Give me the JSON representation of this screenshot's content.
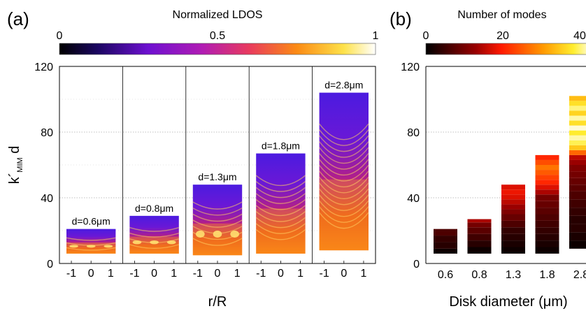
{
  "panel_a": {
    "letter": "(a)",
    "colorbar": {
      "title": "Normalized LDOS",
      "tick_labels": [
        "0",
        "0.5",
        "1"
      ],
      "ticks": [
        0,
        0.5,
        1
      ]
    },
    "y_ticks": [
      0,
      40,
      80,
      120
    ],
    "y_tick_labels": [
      "0",
      "40",
      "80",
      "120"
    ],
    "ylabel_main": "k´",
    "ylabel_sub": "MIM",
    "ylabel_tail": " d",
    "xlabel": "r/R",
    "subplot_x_tick_labels": [
      "-1",
      "0",
      "1"
    ],
    "subplots": [
      {
        "label": "d=0.6μm",
        "y_min": 6,
        "y_max": 21
      },
      {
        "label": "d=0.8μm",
        "y_min": 6,
        "y_max": 29
      },
      {
        "label": "d=1.3μm",
        "y_min": 5,
        "y_max": 48
      },
      {
        "label": "d=1.8μm",
        "y_min": 6,
        "y_max": 67
      },
      {
        "label": "d=2.8μm",
        "y_min": 8,
        "y_max": 104
      }
    ]
  },
  "panel_b": {
    "letter": "(b)",
    "colorbar": {
      "title": "Number of modes",
      "tick_labels": [
        "0",
        "20",
        "40"
      ],
      "ticks": [
        0,
        20,
        40
      ]
    },
    "y_tick_labels": [
      "0",
      "40",
      "80",
      "120"
    ],
    "xlabel": "Disk diameter (μm)"
  },
  "chart_data": [
    {
      "type": "heatmap",
      "title": "",
      "colorbar_label": "Normalized LDOS",
      "colorbar_range": [
        0,
        1
      ],
      "xlabel": "r/R",
      "ylabel": "k´MIM d",
      "ylim": [
        0,
        120
      ],
      "xlim": [
        -1,
        1
      ],
      "grid": "horizontal dotted",
      "panels": [
        {
          "d_um": 0.6,
          "label": "d=0.6μm",
          "y_range": [
            6,
            21
          ]
        },
        {
          "d_um": 0.8,
          "label": "d=0.8μm",
          "y_range": [
            6,
            29
          ]
        },
        {
          "d_um": 1.3,
          "label": "d=1.3μm",
          "y_range": [
            5,
            48
          ]
        },
        {
          "d_um": 1.8,
          "label": "d=1.8μm",
          "y_range": [
            6,
            67
          ]
        },
        {
          "d_um": 2.8,
          "label": "d=2.8μm",
          "y_range": [
            8,
            104
          ]
        }
      ]
    },
    {
      "type": "bar",
      "title": "",
      "colorbar_label": "Number of modes",
      "colorbar_range": [
        0,
        40
      ],
      "xlabel": "Disk diameter (μm)",
      "ylabel": "k´MIM d",
      "ylim": [
        0,
        120
      ],
      "categories": [
        "0.6",
        "0.8",
        "1.3",
        "1.8",
        "2.8"
      ],
      "bars": [
        {
          "category": "0.6",
          "bottom": 6,
          "top": 21,
          "segments": [
            {
              "y0": 6,
              "y1": 9,
              "modes": 1
            },
            {
              "y0": 9,
              "y1": 13,
              "modes": 3
            },
            {
              "y0": 13,
              "y1": 17,
              "modes": 4
            },
            {
              "y0": 17,
              "y1": 21,
              "modes": 6
            }
          ]
        },
        {
          "category": "0.8",
          "bottom": 6,
          "top": 27,
          "segments": [
            {
              "y0": 6,
              "y1": 10,
              "modes": 1
            },
            {
              "y0": 10,
              "y1": 14,
              "modes": 3
            },
            {
              "y0": 14,
              "y1": 18,
              "modes": 5
            },
            {
              "y0": 18,
              "y1": 22,
              "modes": 7
            },
            {
              "y0": 22,
              "y1": 25,
              "modes": 9
            },
            {
              "y0": 25,
              "y1": 27,
              "modes": 13
            }
          ]
        },
        {
          "category": "1.3",
          "bottom": 6,
          "top": 48,
          "segments": [
            {
              "y0": 6,
              "y1": 10,
              "modes": 1
            },
            {
              "y0": 10,
              "y1": 14,
              "modes": 2
            },
            {
              "y0": 14,
              "y1": 18,
              "modes": 3
            },
            {
              "y0": 18,
              "y1": 22,
              "modes": 4
            },
            {
              "y0": 22,
              "y1": 26,
              "modes": 6
            },
            {
              "y0": 26,
              "y1": 30,
              "modes": 8
            },
            {
              "y0": 30,
              "y1": 33,
              "modes": 10
            },
            {
              "y0": 33,
              "y1": 36,
              "modes": 12
            },
            {
              "y0": 36,
              "y1": 39,
              "modes": 14
            },
            {
              "y0": 39,
              "y1": 42,
              "modes": 16
            },
            {
              "y0": 42,
              "y1": 45,
              "modes": 17
            },
            {
              "y0": 45,
              "y1": 48,
              "modes": 16
            }
          ]
        },
        {
          "category": "1.8",
          "bottom": 6,
          "top": 66,
          "segments": [
            {
              "y0": 6,
              "y1": 10,
              "modes": 1
            },
            {
              "y0": 10,
              "y1": 14,
              "modes": 2
            },
            {
              "y0": 14,
              "y1": 18,
              "modes": 3
            },
            {
              "y0": 18,
              "y1": 22,
              "modes": 4
            },
            {
              "y0": 22,
              "y1": 26,
              "modes": 5
            },
            {
              "y0": 26,
              "y1": 30,
              "modes": 6
            },
            {
              "y0": 30,
              "y1": 34,
              "modes": 7
            },
            {
              "y0": 34,
              "y1": 38,
              "modes": 8
            },
            {
              "y0": 38,
              "y1": 42,
              "modes": 9
            },
            {
              "y0": 42,
              "y1": 45,
              "modes": 13
            },
            {
              "y0": 45,
              "y1": 48,
              "modes": 16
            },
            {
              "y0": 48,
              "y1": 51,
              "modes": 19
            },
            {
              "y0": 51,
              "y1": 54,
              "modes": 21
            },
            {
              "y0": 54,
              "y1": 57,
              "modes": 23
            },
            {
              "y0": 57,
              "y1": 60,
              "modes": 25
            },
            {
              "y0": 60,
              "y1": 63,
              "modes": 22
            },
            {
              "y0": 63,
              "y1": 66,
              "modes": 19
            }
          ]
        },
        {
          "category": "2.8",
          "bottom": 9,
          "top": 102,
          "segments": [
            {
              "y0": 9,
              "y1": 14,
              "modes": 1
            },
            {
              "y0": 14,
              "y1": 19,
              "modes": 2
            },
            {
              "y0": 19,
              "y1": 24,
              "modes": 3
            },
            {
              "y0": 24,
              "y1": 29,
              "modes": 3
            },
            {
              "y0": 29,
              "y1": 34,
              "modes": 4
            },
            {
              "y0": 34,
              "y1": 39,
              "modes": 5
            },
            {
              "y0": 39,
              "y1": 44,
              "modes": 6
            },
            {
              "y0": 44,
              "y1": 48,
              "modes": 7
            },
            {
              "y0": 48,
              "y1": 52,
              "modes": 8
            },
            {
              "y0": 52,
              "y1": 56,
              "modes": 9
            },
            {
              "y0": 56,
              "y1": 60,
              "modes": 10
            },
            {
              "y0": 60,
              "y1": 63,
              "modes": 12
            },
            {
              "y0": 63,
              "y1": 66,
              "modes": 14
            },
            {
              "y0": 66,
              "y1": 69,
              "modes": 24
            },
            {
              "y0": 69,
              "y1": 72,
              "modes": 32
            },
            {
              "y0": 72,
              "y1": 75,
              "modes": 36
            },
            {
              "y0": 75,
              "y1": 78,
              "modes": 38
            },
            {
              "y0": 78,
              "y1": 81,
              "modes": 35
            },
            {
              "y0": 81,
              "y1": 84,
              "modes": 39
            },
            {
              "y0": 84,
              "y1": 87,
              "modes": 34
            },
            {
              "y0": 87,
              "y1": 90,
              "modes": 38
            },
            {
              "y0": 90,
              "y1": 93,
              "modes": 33
            },
            {
              "y0": 93,
              "y1": 96,
              "modes": 37
            },
            {
              "y0": 96,
              "y1": 99,
              "modes": 34
            },
            {
              "y0": 99,
              "y1": 102,
              "modes": 31
            }
          ]
        }
      ]
    }
  ]
}
